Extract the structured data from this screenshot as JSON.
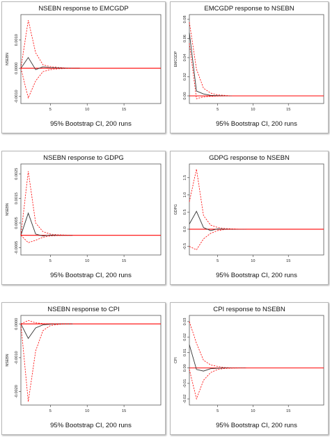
{
  "chart_data": [
    {
      "type": "line",
      "title": "NSEBN response to EMCGDP",
      "ylabel": "NSEBN",
      "caption": "95% Bootstrap CI, 200 runs",
      "xlim": [
        1,
        20
      ],
      "ylim": [
        -0.00125,
        0.0019
      ],
      "x_ticks": [
        5,
        10,
        15
      ],
      "y_ticks": [
        -0.001,
        0,
        0.001
      ],
      "y_tick_labels": [
        "-0.0010",
        "0.0000",
        "0.0010"
      ],
      "x": [
        1,
        2,
        3,
        4,
        5,
        6,
        7,
        8,
        9
      ],
      "series": [
        {
          "role": "response",
          "values": [
            0,
            0.00038,
            -5e-05,
            5e-05,
            2e-05,
            1e-05,
            5e-06,
            0,
            0
          ]
        },
        {
          "role": "upper",
          "values": [
            0,
            0.0017,
            0.00055,
            0.00012,
            6e-05,
            3e-05,
            1e-05,
            0,
            0
          ]
        },
        {
          "role": "lower",
          "values": [
            0,
            -0.00105,
            -0.00045,
            -0.00012,
            -5e-05,
            -2e-05,
            -1e-05,
            0,
            0
          ]
        }
      ]
    },
    {
      "type": "line",
      "title": "EMCGDP response to NSEBN",
      "ylabel": "EMCGDP",
      "caption": "95% Bootstrap CI, 200 runs",
      "xlim": [
        1,
        20
      ],
      "ylim": [
        -0.008,
        0.085
      ],
      "x_ticks": [
        5,
        10,
        15
      ],
      "y_ticks": [
        0,
        0.02,
        0.04,
        0.06,
        0.08
      ],
      "y_tick_labels": [
        "0.00",
        "0.02",
        "0.04",
        "0.06",
        "0.08"
      ],
      "x": [
        1,
        2,
        3,
        4,
        5,
        6,
        7
      ],
      "series": [
        {
          "role": "response",
          "values": [
            0.066,
            0.005,
            0.002,
            0.0005,
            0.0002,
            0.0001,
            0
          ]
        },
        {
          "role": "upper",
          "values": [
            0.077,
            0.028,
            0.008,
            0.003,
            0.001,
            0.0005,
            0
          ]
        },
        {
          "role": "lower",
          "values": [
            0.055,
            -0.003,
            -0.001,
            -0.0005,
            -0.0002,
            -0.0001,
            0
          ]
        }
      ]
    },
    {
      "type": "line",
      "title": "NSEBN response to GDPG",
      "ylabel": "NSEBN",
      "caption": "95% Bootstrap CI, 200 runs",
      "xlim": [
        1,
        20
      ],
      "ylim": [
        -0.0008,
        0.0029
      ],
      "x_ticks": [
        5,
        10,
        15
      ],
      "y_ticks": [
        -0.0005,
        0.0005,
        0.0015,
        0.0025
      ],
      "y_tick_labels": [
        "-0.0005",
        "0.0005",
        "0.0015",
        "0.0025"
      ],
      "x": [
        1,
        2,
        3,
        4,
        5,
        6,
        7,
        8
      ],
      "series": [
        {
          "role": "response",
          "values": [
            0,
            0.0009,
            5e-05,
            -3e-05,
            1e-05,
            0,
            0,
            0
          ]
        },
        {
          "role": "upper",
          "values": [
            0,
            0.0026,
            0.0005,
            0.00015,
            5e-05,
            2e-05,
            1e-05,
            0
          ]
        },
        {
          "role": "lower",
          "values": [
            0,
            -0.0003,
            -0.0002,
            -8e-05,
            -3e-05,
            -1e-05,
            0,
            0
          ]
        }
      ]
    },
    {
      "type": "line",
      "title": "GDPG response to NSEBN",
      "ylabel": "GDPG",
      "caption": "95% Bootstrap CI, 200 runs",
      "xlim": [
        1,
        20
      ],
      "ylim": [
        -0.75,
        1.9
      ],
      "x_ticks": [
        5,
        10,
        15
      ],
      "y_ticks": [
        -0.5,
        0,
        0.5,
        1.0,
        1.5
      ],
      "y_tick_labels": [
        "-0.5",
        "0.0",
        "0.5",
        "1.0",
        "1.5"
      ],
      "x": [
        1,
        2,
        3,
        4,
        5,
        6,
        7,
        8,
        9
      ],
      "series": [
        {
          "role": "response",
          "values": [
            0.15,
            0.52,
            0.05,
            -0.04,
            0.01,
            0,
            0,
            0,
            0
          ]
        },
        {
          "role": "upper",
          "values": [
            0.8,
            1.75,
            0.4,
            0.12,
            0.05,
            0.02,
            0.01,
            0,
            0
          ]
        },
        {
          "role": "lower",
          "values": [
            -0.5,
            -0.6,
            -0.28,
            -0.12,
            -0.04,
            -0.01,
            0,
            0,
            0
          ]
        }
      ]
    },
    {
      "type": "line",
      "title": "NSEBN response to CPI",
      "ylabel": "NSEBN",
      "caption": "95% Bootstrap CI, 200 runs",
      "xlim": [
        1,
        20
      ],
      "ylim": [
        -0.0024,
        0.00025
      ],
      "x_ticks": [
        5,
        10,
        15
      ],
      "y_ticks": [
        -0.002,
        -0.001,
        0
      ],
      "y_tick_labels": [
        "-0.0020",
        "-0.0010",
        "0.0000"
      ],
      "x": [
        1,
        2,
        3,
        4,
        5,
        6,
        7,
        8
      ],
      "series": [
        {
          "role": "response",
          "values": [
            0,
            -0.00043,
            -0.00012,
            -3e-05,
            -1e-05,
            0,
            0,
            0
          ]
        },
        {
          "role": "upper",
          "values": [
            0,
            0.0001,
            3e-05,
            1e-05,
            0,
            0,
            0,
            0
          ]
        },
        {
          "role": "lower",
          "values": [
            0,
            -0.0023,
            -0.0008,
            -0.0002,
            -5e-05,
            -2e-05,
            0,
            0
          ]
        }
      ]
    },
    {
      "type": "line",
      "title": "CPI response to NSEBN",
      "ylabel": "CPI",
      "caption": "95% Bootstrap CI, 200 runs",
      "xlim": [
        1,
        20
      ],
      "ylim": [
        -0.024,
        0.034
      ],
      "x_ticks": [
        5,
        10,
        15
      ],
      "y_ticks": [
        -0.02,
        -0.01,
        0,
        0.01,
        0.02,
        0.03
      ],
      "y_tick_labels": [
        "-0.02",
        "-0.01",
        "0.00",
        "0.01",
        "0.02",
        "0.03"
      ],
      "x": [
        1,
        2,
        3,
        4,
        5,
        6,
        7,
        8,
        9
      ],
      "series": [
        {
          "role": "response",
          "values": [
            0.015,
            -0.001,
            -0.002,
            -0.0005,
            -0.0002,
            0,
            0,
            0,
            0
          ]
        },
        {
          "role": "upper",
          "values": [
            0.03,
            0.016,
            0.005,
            0.002,
            0.001,
            0.0003,
            0.0001,
            0,
            0
          ]
        },
        {
          "role": "lower",
          "values": [
            -0.001,
            -0.02,
            -0.008,
            -0.003,
            -0.001,
            -0.0003,
            -0.0001,
            0,
            0
          ]
        }
      ]
    }
  ],
  "colors": {
    "response": "#333333",
    "ci_band": "#ff0000",
    "zero_line": "#ff0000",
    "plot_border": "#555555"
  }
}
